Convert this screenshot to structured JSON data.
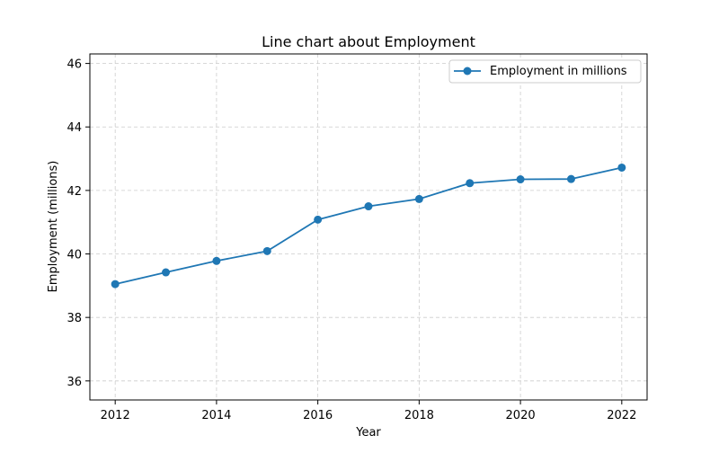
{
  "chart_data": {
    "type": "line",
    "title": "Line chart about Employment",
    "xlabel": "Year",
    "ylabel": "Employment (millions)",
    "x": [
      2012,
      2013,
      2014,
      2015,
      2016,
      2017,
      2018,
      2019,
      2020,
      2021,
      2022
    ],
    "series": [
      {
        "name": "Employment in millions",
        "values": [
          39.05,
          39.42,
          39.78,
          40.09,
          41.08,
          41.5,
          41.73,
          42.23,
          42.35,
          42.36,
          42.72
        ],
        "color": "#1f77b4",
        "marker": "circle"
      }
    ],
    "xlim": [
      2011.5,
      2022.5
    ],
    "ylim": [
      35.4,
      46.3
    ],
    "xticks": [
      2012,
      2014,
      2016,
      2018,
      2020,
      2022
    ],
    "yticks": [
      36,
      38,
      40,
      42,
      44,
      46
    ],
    "grid": true,
    "legend_position": "top-right"
  }
}
